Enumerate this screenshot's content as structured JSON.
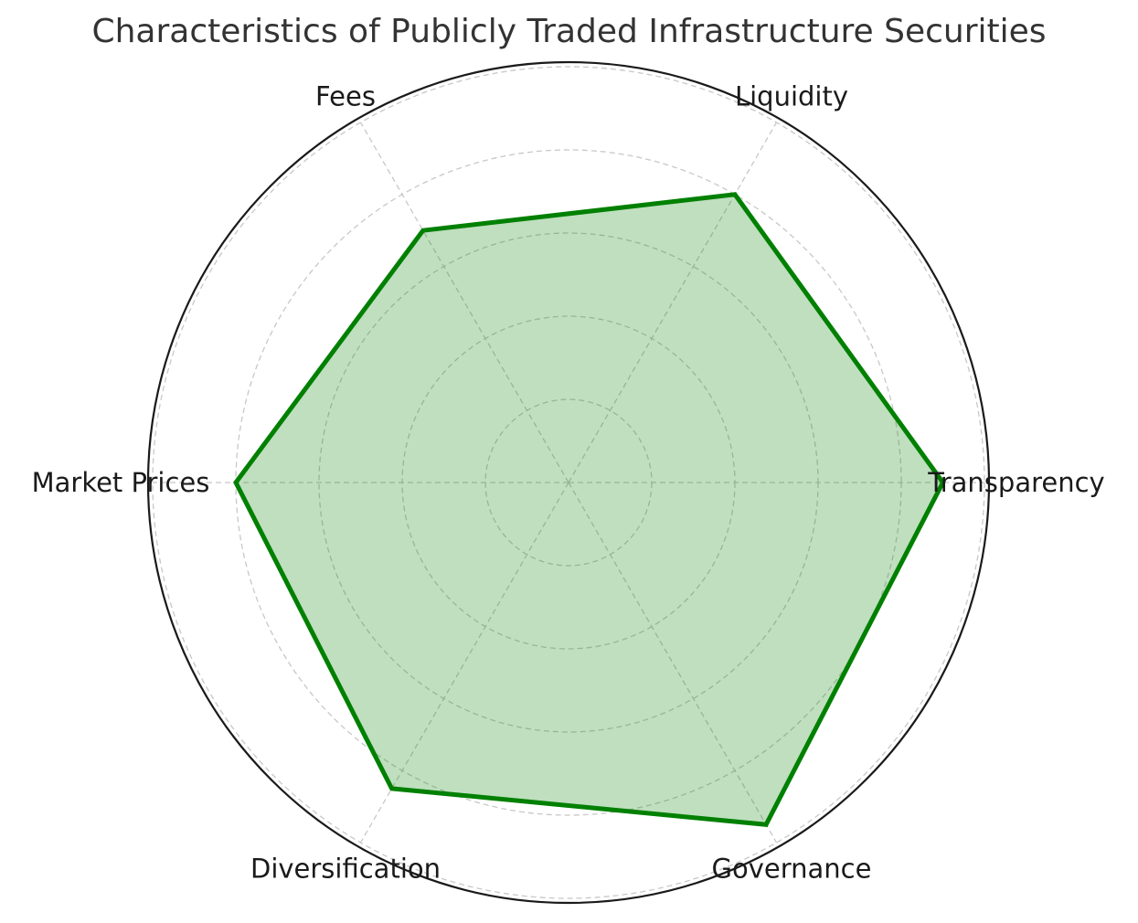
{
  "chart_data": {
    "type": "radar",
    "title": "Characteristics of Publicly Traded Infrastructure Securities",
    "categories": [
      "Transparency",
      "Liquidity",
      "Fees",
      "Market Prices",
      "Diversification",
      "Governance"
    ],
    "values": [
      9,
      8,
      7,
      8,
      8.5,
      9.5
    ],
    "rlim": [
      0,
      10
    ],
    "rings": [
      2,
      4,
      6,
      8,
      10
    ],
    "grid": true,
    "colors": {
      "line": "#008000",
      "fill": "#008000",
      "grid": "#c8c8c8",
      "frame": "#1a1a1a"
    }
  }
}
